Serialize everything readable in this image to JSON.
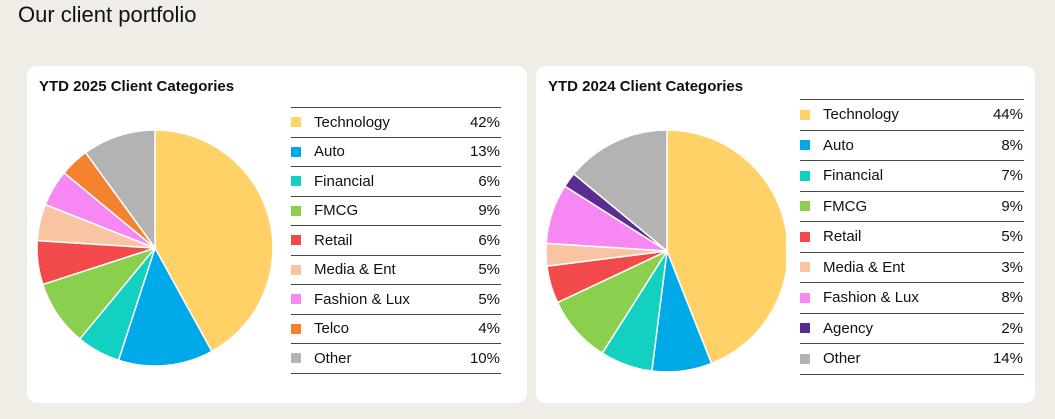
{
  "page_title": "Our client portfolio",
  "chart_data": [
    {
      "type": "pie",
      "title": "YTD 2025 Client Categories",
      "slices": [
        {
          "label": "Technology",
          "value": 42,
          "display": "42%",
          "color": "#ffd166"
        },
        {
          "label": "Auto",
          "value": 13,
          "display": "13%",
          "color": "#00a9e8"
        },
        {
          "label": "Financial",
          "value": 6,
          "display": "6%",
          "color": "#12d1c0"
        },
        {
          "label": "FMCG",
          "value": 9,
          "display": "9%",
          "color": "#8bcf4f"
        },
        {
          "label": "Retail",
          "value": 6,
          "display": "6%",
          "color": "#f24a4a"
        },
        {
          "label": "Media & Ent",
          "value": 5,
          "display": "5%",
          "color": "#f8c4a4"
        },
        {
          "label": "Fashion & Lux",
          "value": 5,
          "display": "5%",
          "color": "#f787f3"
        },
        {
          "label": "Telco",
          "value": 4,
          "display": "4%",
          "color": "#f5822f"
        },
        {
          "label": "Other",
          "value": 10,
          "display": "10%",
          "color": "#b3b3b3"
        }
      ]
    },
    {
      "type": "pie",
      "title": "YTD 2024 Client Categories",
      "slices": [
        {
          "label": "Technology",
          "value": 44,
          "display": "44%",
          "color": "#ffd166"
        },
        {
          "label": "Auto",
          "value": 8,
          "display": "8%",
          "color": "#00a9e8"
        },
        {
          "label": "Financial",
          "value": 7,
          "display": "7%",
          "color": "#12d1c0"
        },
        {
          "label": "FMCG",
          "value": 9,
          "display": "9%",
          "color": "#8bcf4f"
        },
        {
          "label": "Retail",
          "value": 5,
          "display": "5%",
          "color": "#f24a4a"
        },
        {
          "label": "Media & Ent",
          "value": 3,
          "display": "3%",
          "color": "#f8c4a4"
        },
        {
          "label": "Fashion & Lux",
          "value": 8,
          "display": "8%",
          "color": "#f787f3"
        },
        {
          "label": "Agency",
          "value": 2,
          "display": "2%",
          "color": "#5b2c91"
        },
        {
          "label": "Other",
          "value": 14,
          "display": "14%",
          "color": "#b3b3b3"
        }
      ]
    }
  ]
}
